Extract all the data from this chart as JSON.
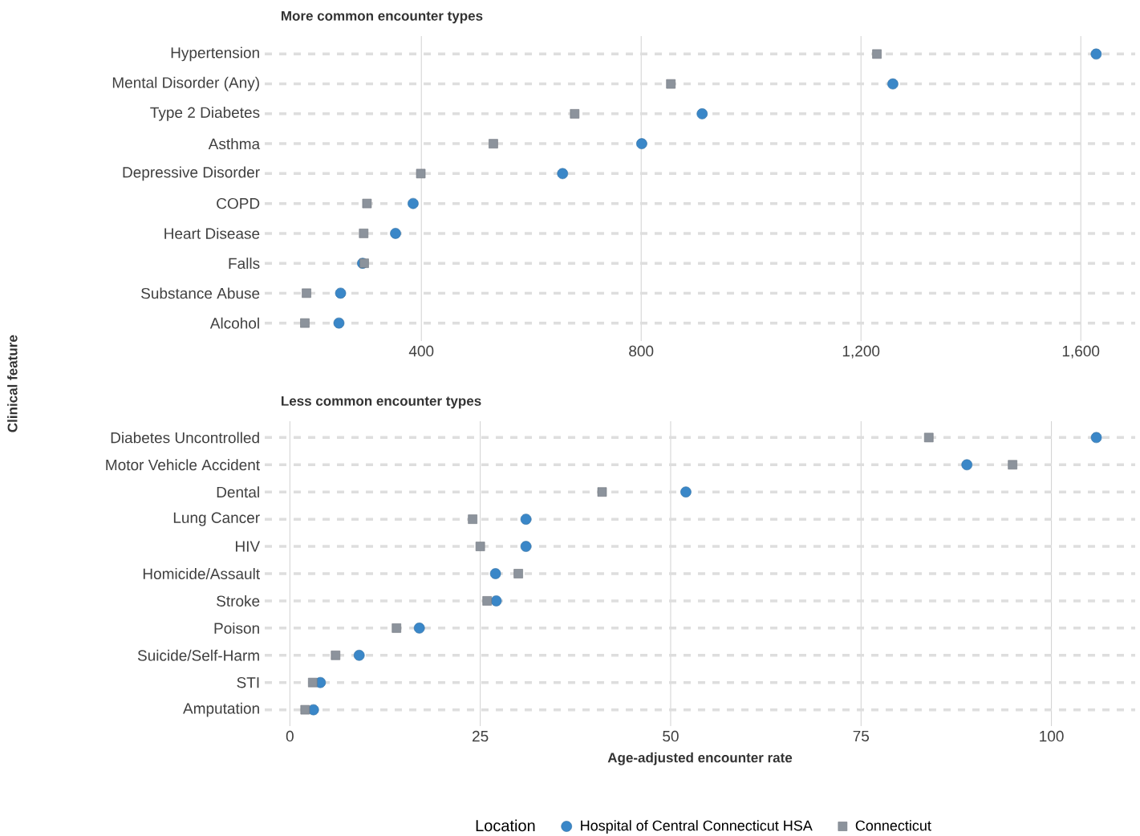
{
  "chart_data": [
    {
      "type": "scatter",
      "title": "More common encounter types",
      "ylabel": "Clinical feature",
      "categories": [
        "Hypertension",
        "Mental Disorder (Any)",
        "Type 2 Diabetes",
        "Asthma",
        "Depressive Disorder",
        "COPD",
        "Heart Disease",
        "Falls",
        "Substance Abuse",
        "Alcohol"
      ],
      "series": [
        {
          "color": "#3a87c8",
          "marker": "circle",
          "values": [
            1628,
            1258,
            911,
            801,
            657,
            385,
            353,
            293,
            253,
            250
          ]
        },
        {
          "color": "#8c939c",
          "marker": "square",
          "values": [
            1229,
            854,
            679,
            531,
            399,
            301,
            295,
            296,
            191,
            188
          ]
        }
      ],
      "orientation": "horizontal",
      "xlim": [
        115,
        1699
      ],
      "xticks": [
        400,
        800,
        {
          "value": 1200,
          "label": "1,200"
        },
        {
          "value": 1600,
          "label": "1,600"
        }
      ],
      "grid": true,
      "legend": false
    },
    {
      "type": "scatter",
      "title": "Less common encounter types",
      "xlabel": "Age-adjusted encounter rate",
      "legend_title": "Location",
      "categories": [
        "Diabetes Uncontrolled",
        "Motor Vehicle Accident",
        "Dental",
        "Lung Cancer",
        "HIV",
        "Homicide/Assault",
        "Stroke",
        "Poison",
        "Suicide/Self-Harm",
        "STI",
        "Amputation"
      ],
      "series": [
        {
          "name": "Hospital of Central Connecticut HSA",
          "color": "#3a87c8",
          "marker": "circle",
          "values": [
            105.9,
            88.9,
            52,
            31,
            31,
            27,
            27.1,
            17,
            9.1,
            4,
            3.1
          ]
        },
        {
          "name": "Connecticut",
          "color": "#8c939c",
          "marker": "square",
          "values": [
            83.9,
            94.9,
            41,
            24,
            25,
            30,
            25.9,
            14,
            6,
            3,
            2
          ]
        }
      ],
      "orientation": "horizontal",
      "xlim": [
        -3.3,
        111
      ],
      "xticks": [
        0,
        25,
        50,
        75,
        100
      ],
      "grid": true,
      "legend": "bottom"
    }
  ]
}
